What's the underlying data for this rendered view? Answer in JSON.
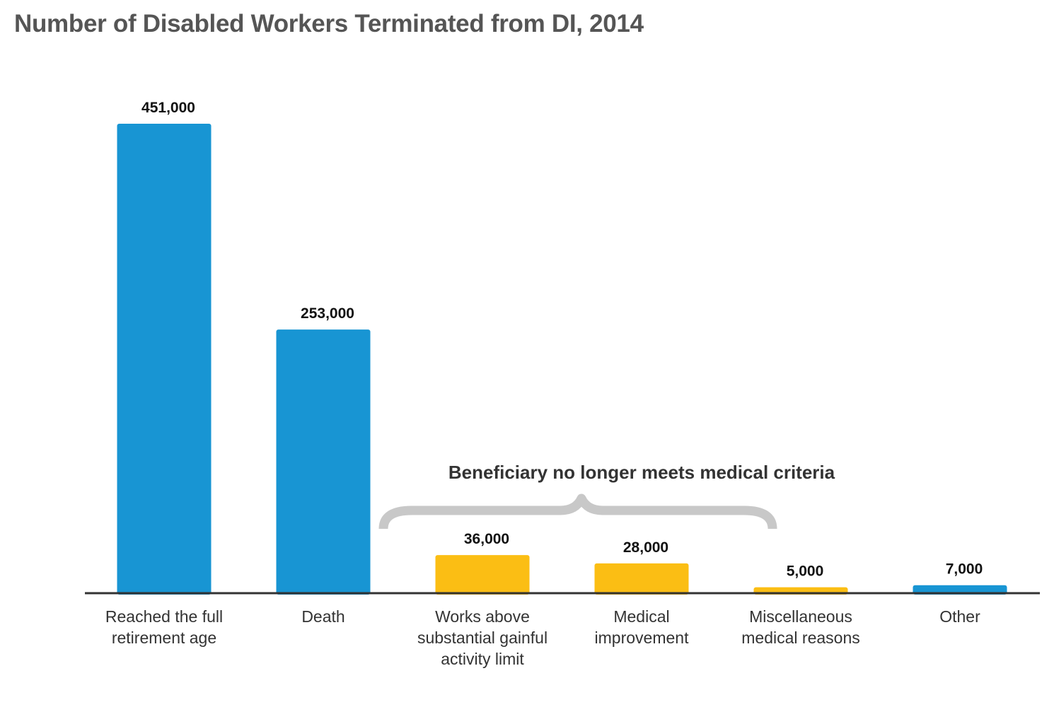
{
  "chart_data": {
    "type": "bar",
    "title": "Number of Disabled Workers Terminated from DI, 2014",
    "categories": [
      [
        "Reached the full",
        "retirement age"
      ],
      [
        "Death"
      ],
      [
        "Works above",
        "substantial gainful",
        "activity limit"
      ],
      [
        "Medical",
        "improvement"
      ],
      [
        "Miscellaneous",
        "medical reasons"
      ],
      [
        "Other"
      ]
    ],
    "values": [
      451000,
      253000,
      36000,
      28000,
      5000,
      7000
    ],
    "value_labels": [
      "451,000",
      "253,000",
      "36,000",
      "28,000",
      "5,000",
      "7,000"
    ],
    "bar_colors": [
      "#1895d3",
      "#1895d3",
      "#fbbe14",
      "#fbbe14",
      "#fbbe14",
      "#1895d3"
    ],
    "ylim": [
      0,
      451000
    ],
    "grid": false,
    "xlabel": "",
    "ylabel": "",
    "annotation": {
      "text": "Beneficiary no longer meets medical criteria",
      "spans_categories": [
        2,
        4
      ],
      "bracket_color": "#c8c8c8"
    }
  }
}
